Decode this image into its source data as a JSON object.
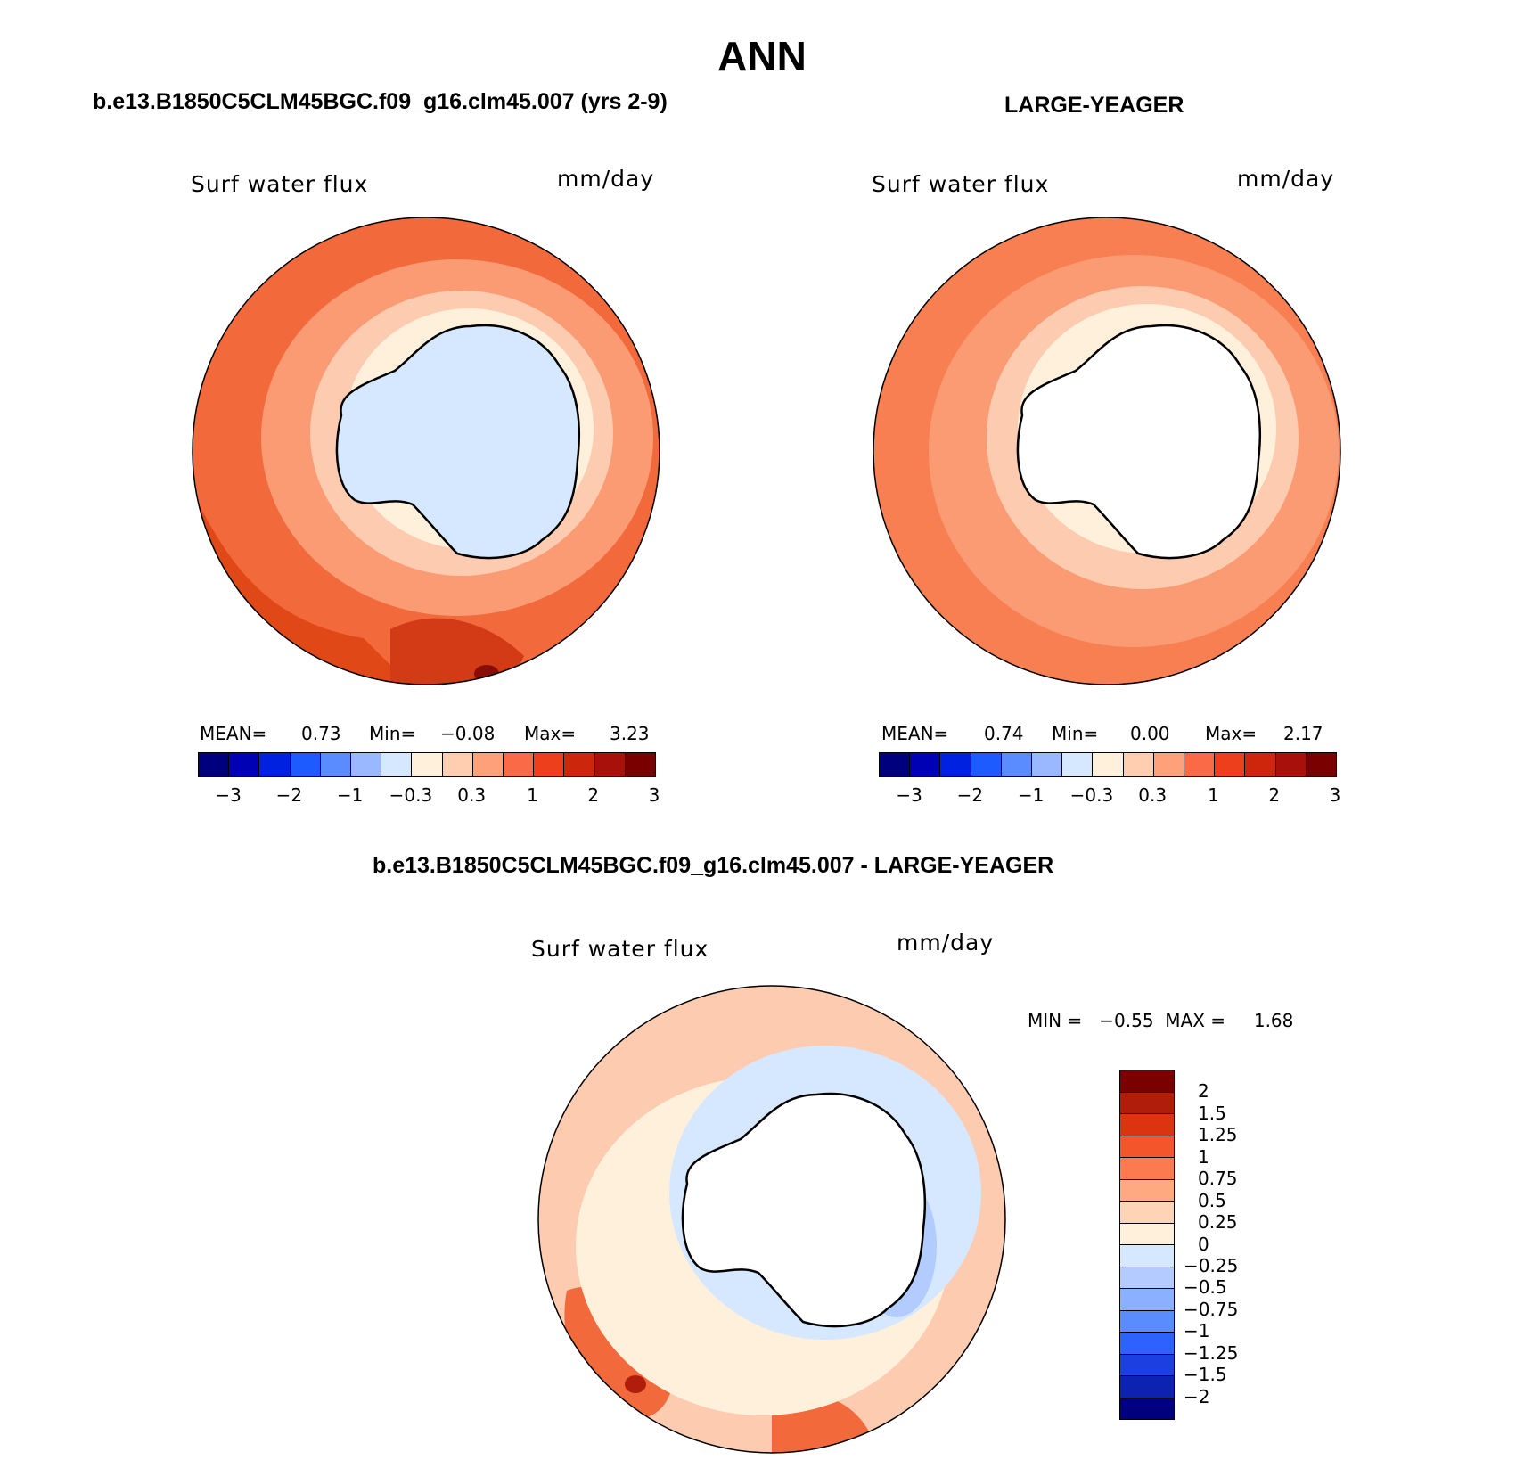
{
  "title": "ANN",
  "panels": {
    "left": {
      "heading": "b.e13.B1850C5CLM45BGC.f09_g16.clm45.007 (yrs 2-9)",
      "var_label": "Surf water flux",
      "units": "mm/day",
      "mean_label": "MEAN=",
      "mean": "0.73",
      "min_label": "Min=",
      "min": "−0.08",
      "max_label": "Max=",
      "max": "3.23"
    },
    "right": {
      "heading": "LARGE-YEAGER",
      "var_label": "Surf water flux",
      "units": "mm/day",
      "mean_label": "MEAN=",
      "mean": "0.74",
      "min_label": "Min=",
      "min": "0.00",
      "max_label": "Max=",
      "max": "2.17"
    },
    "diff": {
      "heading": "b.e13.B1850C5CLM45BGC.f09_g16.clm45.007 - LARGE-YEAGER",
      "var_label": "Surf water flux",
      "units": "mm/day",
      "minmax_text": "MIN =   −0.55  MAX =     1.68"
    }
  },
  "colorbar_main": {
    "colors": [
      "#00007f",
      "#0000b5",
      "#0022e0",
      "#1e5bff",
      "#5a8cff",
      "#99b8ff",
      "#d6e8ff",
      "#fff0dc",
      "#ffcdb0",
      "#fea17a",
      "#fb6a47",
      "#ed3f1c",
      "#cc260c",
      "#a8110b",
      "#7a0000"
    ],
    "ticks": [
      "−3",
      "−2",
      "−1",
      "−0.3",
      "0.3",
      "1",
      "2",
      "3"
    ]
  },
  "colorbar_diff": {
    "colors": [
      "#7a0000",
      "#b01e0b",
      "#dc3310",
      "#f5552b",
      "#fb7a50",
      "#fea97f",
      "#ffd3b8",
      "#fff0dc",
      "#d6e8ff",
      "#b2ccff",
      "#8ab0ff",
      "#5a8cff",
      "#2d62ff",
      "#1b3fe0",
      "#0d22b0",
      "#00007f"
    ],
    "ticks": [
      "2",
      "1.5",
      "1.25",
      "1",
      "0.75",
      "0.5",
      "0.25",
      "0",
      "−0.25",
      "−0.5",
      "−0.75",
      "−1",
      "−1.25",
      "−1.5",
      "−2"
    ]
  },
  "map_colors": {
    "outer": "#f26a3c",
    "mid": "#fb9b74",
    "inner": "#fdcbb0",
    "pale": "#fff0dc",
    "land_model": "#d6e8ff",
    "land_obs": "#ffffff",
    "dark": "#d33b17",
    "darkest": "#8a0c06",
    "blue_light": "#d6e8ff",
    "blue_mid": "#b2ccff"
  }
}
